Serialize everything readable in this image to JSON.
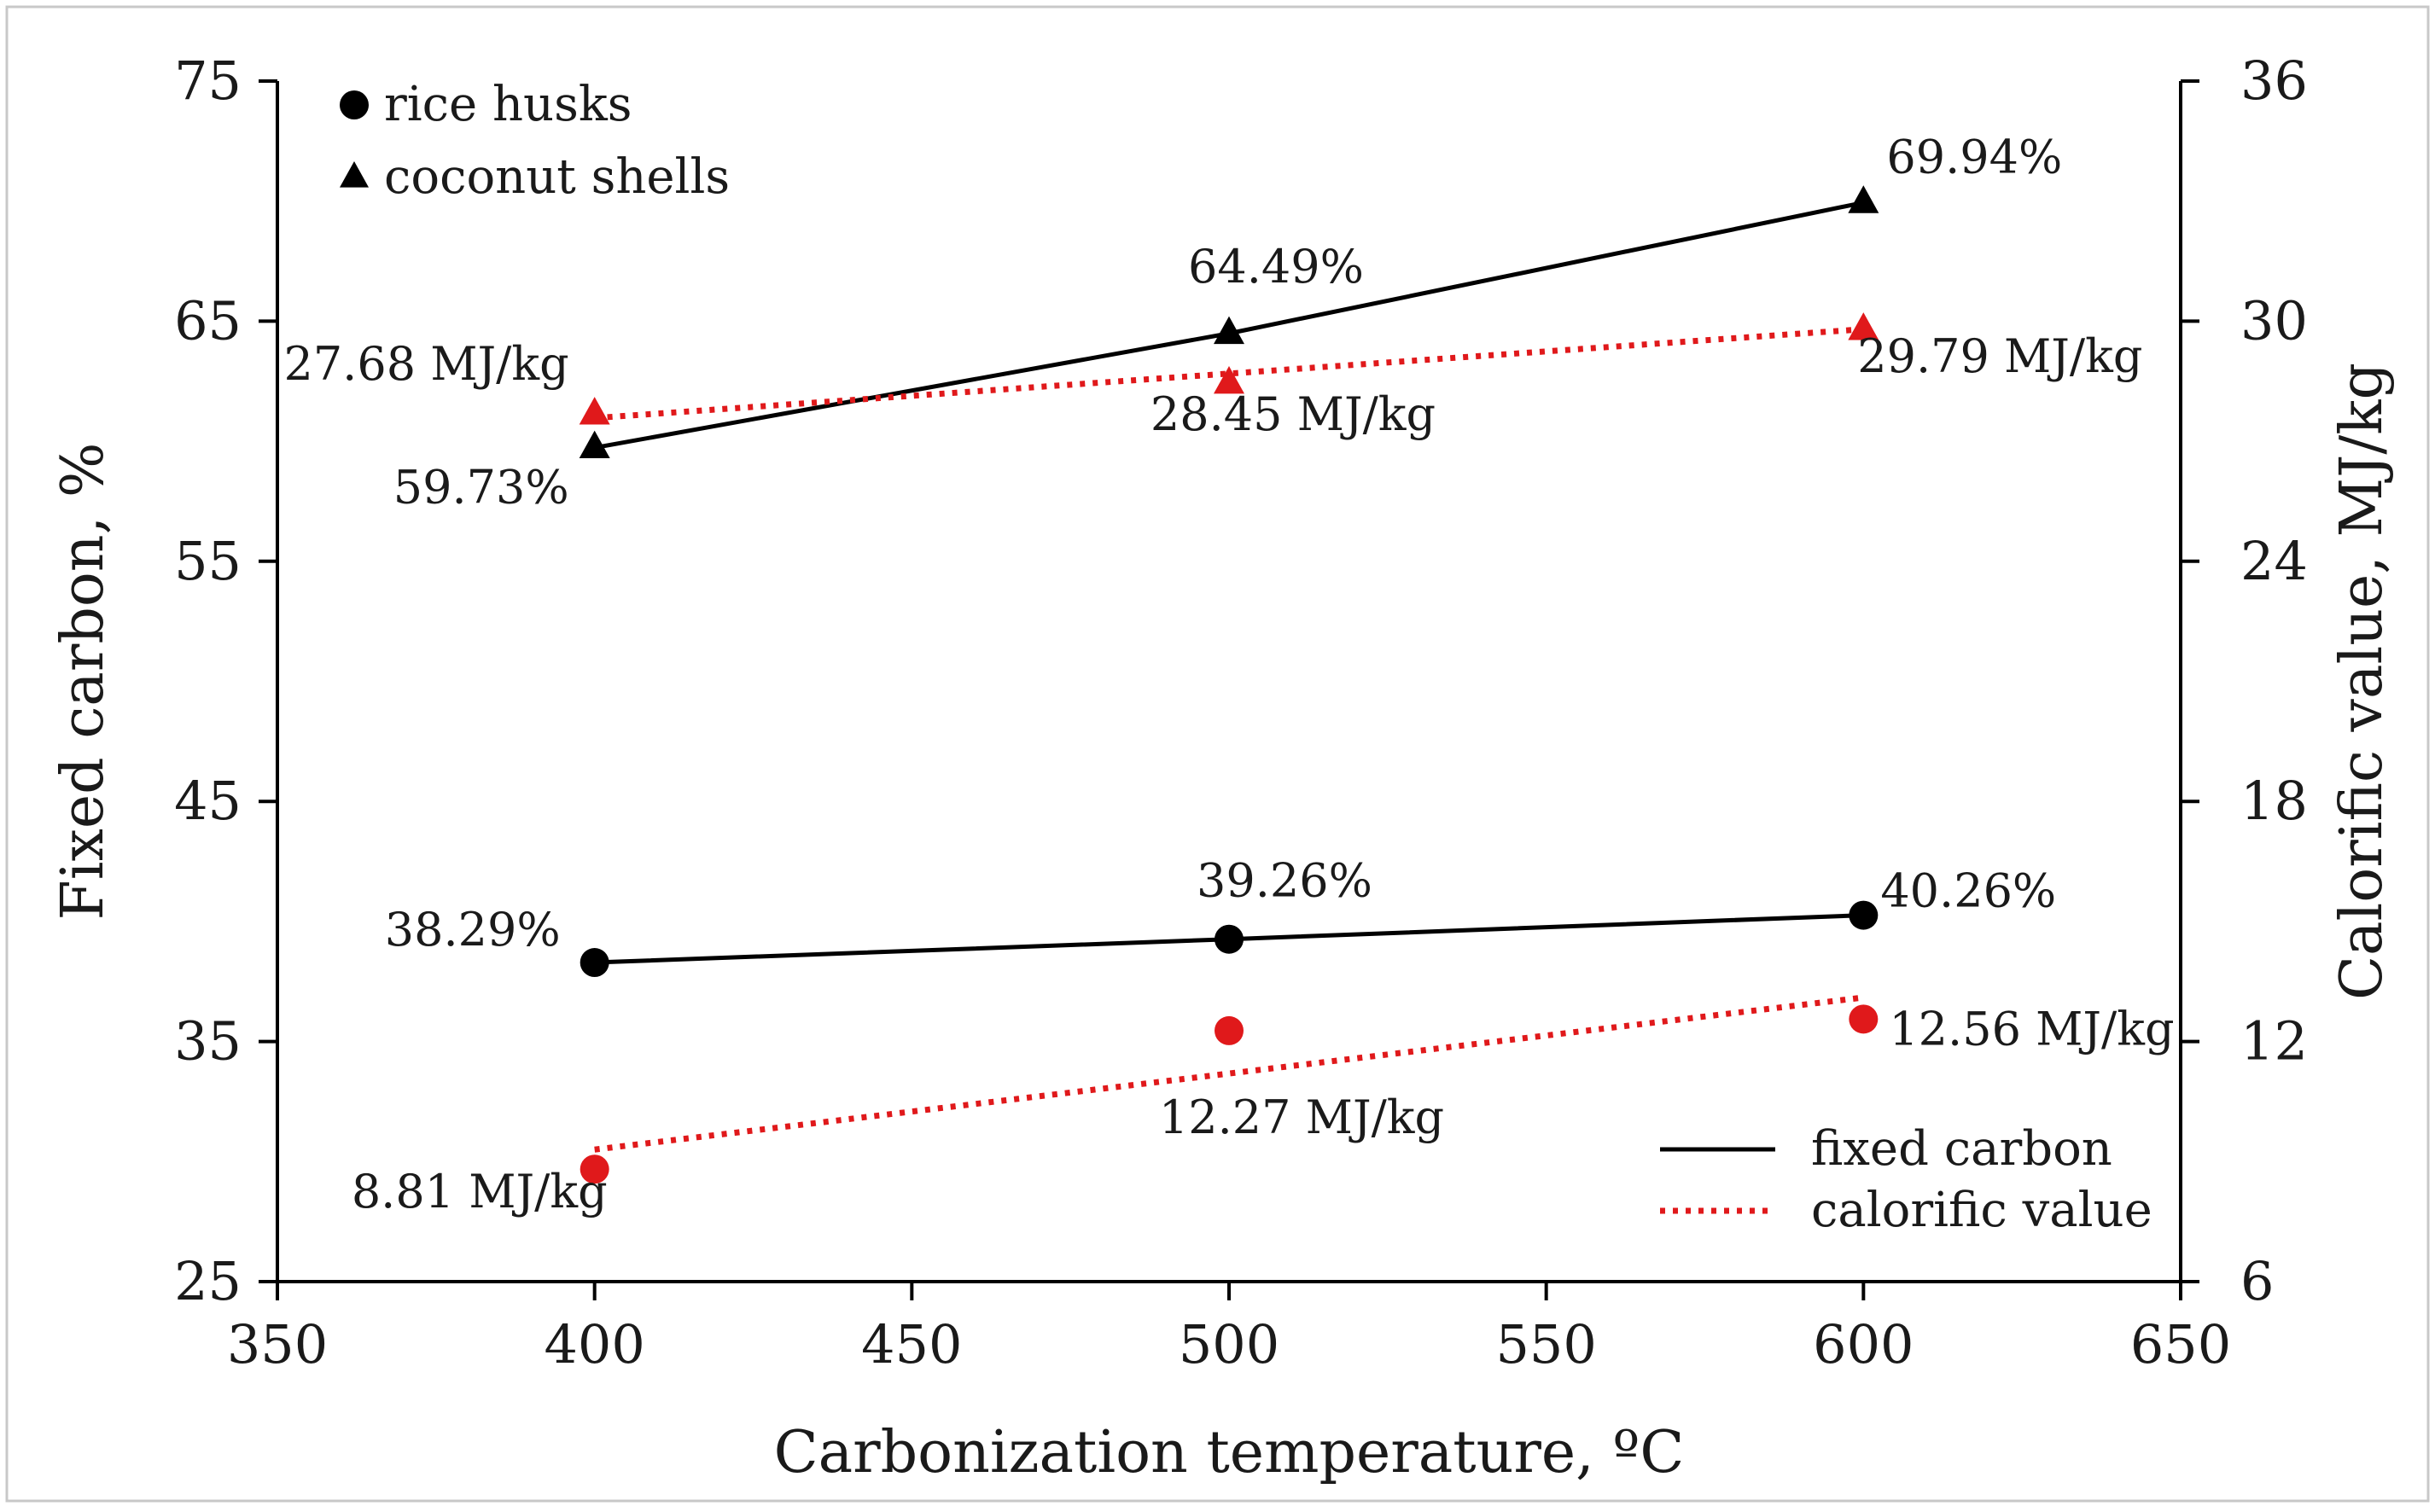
{
  "chart_data": {
    "type": "line",
    "xlabel": "Carbonization temperature, ºC",
    "ylabel": "Fixed carbon, %",
    "y2label": "Calorific value, MJ/kg",
    "xlim": [
      350,
      650
    ],
    "ylim": [
      25,
      75
    ],
    "y2lim": [
      6,
      36
    ],
    "x_ticks": [
      "350",
      "400",
      "450",
      "500",
      "550",
      "600",
      "650"
    ],
    "y_ticks": [
      "25",
      "35",
      "45",
      "55",
      "65",
      "75"
    ],
    "y2_ticks": [
      "6",
      "12",
      "18",
      "24",
      "30",
      "36"
    ],
    "x": [
      400,
      500,
      600
    ],
    "series": [
      {
        "name": "coconut shells fixed carbon",
        "material": "coconut shells",
        "metric": "fixed carbon",
        "axis": "left",
        "marker": "triangle",
        "color": "#000000",
        "style": "solid",
        "values": [
          59.73,
          64.49,
          69.94
        ],
        "labels": [
          "59.73%",
          "64.49%",
          "69.94%"
        ]
      },
      {
        "name": "coconut shells calorific value",
        "material": "coconut shells",
        "metric": "calorific value",
        "axis": "right",
        "marker": "triangle",
        "color": "#e0191b",
        "style": "dotted",
        "values": [
          27.68,
          28.45,
          29.79
        ],
        "trend": [
          27.58,
          28.69,
          29.8
        ],
        "labels": [
          "27.68 MJ/kg",
          "28.45 MJ/kg",
          "29.79 MJ/kg"
        ]
      },
      {
        "name": "rice husks fixed carbon",
        "material": "rice husks",
        "metric": "fixed carbon",
        "axis": "left",
        "marker": "circle",
        "color": "#000000",
        "style": "solid",
        "values": [
          38.29,
          39.26,
          40.26
        ],
        "labels": [
          "38.29%",
          "39.26%",
          "40.26%"
        ]
      },
      {
        "name": "rice husks calorific value",
        "material": "rice husks",
        "metric": "calorific value",
        "axis": "right",
        "marker": "circle",
        "color": "#e0191b",
        "style": "dotted",
        "values": [
          8.81,
          12.27,
          12.56
        ],
        "trend": [
          9.3,
          11.2,
          13.1
        ],
        "labels": [
          "8.81 MJ/kg",
          "12.27 MJ/kg",
          "12.56 MJ/kg"
        ]
      }
    ],
    "legend_markers": [
      {
        "label": "rice husks",
        "marker": "circle"
      },
      {
        "label": "coconut shells",
        "marker": "triangle"
      }
    ],
    "legend_lines": [
      {
        "label": "fixed carbon",
        "style": "solid",
        "color": "#000000"
      },
      {
        "label": "calorific value",
        "style": "dotted",
        "color": "#e0191b"
      }
    ],
    "grid": false,
    "legend_position": "top-left and bottom-right"
  }
}
